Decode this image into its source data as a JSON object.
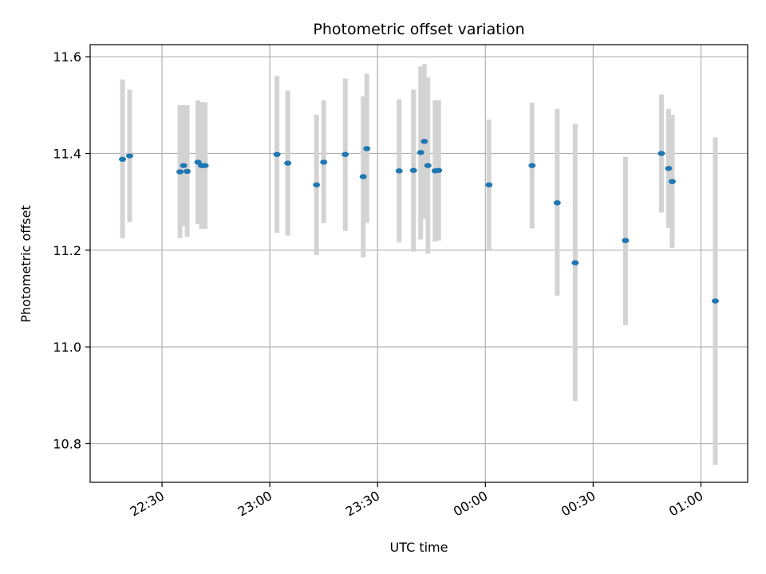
{
  "chart_data": {
    "type": "scatter",
    "title": "Photometric offset variation",
    "xlabel": "UTC time",
    "ylabel": "Photometric offset",
    "x_unit": "UTC time of day (HH:MM), crosses midnight",
    "x_range": [
      "22:10",
      "01:13"
    ],
    "ylim": [
      10.72,
      11.625
    ],
    "grid": true,
    "legend": "none",
    "x_ticks": [
      "22:30",
      "23:00",
      "23:30",
      "00:00",
      "00:30",
      "01:00"
    ],
    "y_ticks": [
      10.8,
      11.0,
      11.2,
      11.4,
      11.6
    ],
    "y_tick_labels": [
      "10.8",
      "11.0",
      "11.2",
      "11.4",
      "11.6"
    ],
    "colors": {
      "point": "#1f77b4",
      "errorbar": "#d3d3d3",
      "grid": "#b0b0b0"
    },
    "points": [
      {
        "t": "22:19",
        "y": 11.388,
        "lo": 11.225,
        "hi": 11.553
      },
      {
        "t": "22:21",
        "y": 11.395,
        "lo": 11.258,
        "hi": 11.532
      },
      {
        "t": "22:35",
        "y": 11.362,
        "lo": 11.225,
        "hi": 11.5
      },
      {
        "t": "22:36",
        "y": 11.375,
        "lo": 11.25,
        "hi": 11.5
      },
      {
        "t": "22:37",
        "y": 11.363,
        "lo": 11.228,
        "hi": 11.5
      },
      {
        "t": "22:40",
        "y": 11.382,
        "lo": 11.254,
        "hi": 11.51
      },
      {
        "t": "22:41",
        "y": 11.375,
        "lo": 11.244,
        "hi": 11.506
      },
      {
        "t": "22:42",
        "y": 11.375,
        "lo": 11.244,
        "hi": 11.506
      },
      {
        "t": "23:02",
        "y": 11.398,
        "lo": 11.236,
        "hi": 11.56
      },
      {
        "t": "23:05",
        "y": 11.38,
        "lo": 11.23,
        "hi": 11.53
      },
      {
        "t": "23:13",
        "y": 11.335,
        "lo": 11.19,
        "hi": 11.48
      },
      {
        "t": "23:15",
        "y": 11.382,
        "lo": 11.256,
        "hi": 11.51
      },
      {
        "t": "23:21",
        "y": 11.398,
        "lo": 11.24,
        "hi": 11.555
      },
      {
        "t": "23:26",
        "y": 11.352,
        "lo": 11.185,
        "hi": 11.518
      },
      {
        "t": "23:27",
        "y": 11.41,
        "lo": 11.256,
        "hi": 11.565
      },
      {
        "t": "23:36",
        "y": 11.364,
        "lo": 11.216,
        "hi": 11.512
      },
      {
        "t": "23:40",
        "y": 11.365,
        "lo": 11.197,
        "hi": 11.532
      },
      {
        "t": "23:42",
        "y": 11.402,
        "lo": 11.222,
        "hi": 11.58
      },
      {
        "t": "23:43",
        "y": 11.425,
        "lo": 11.265,
        "hi": 11.585
      },
      {
        "t": "23:44",
        "y": 11.375,
        "lo": 11.193,
        "hi": 11.557
      },
      {
        "t": "23:46",
        "y": 11.364,
        "lo": 11.218,
        "hi": 11.51
      },
      {
        "t": "23:47",
        "y": 11.365,
        "lo": 11.22,
        "hi": 11.51
      },
      {
        "t": "00:01",
        "y": 11.335,
        "lo": 11.2,
        "hi": 11.47
      },
      {
        "t": "00:13",
        "y": 11.375,
        "lo": 11.245,
        "hi": 11.505
      },
      {
        "t": "00:20",
        "y": 11.298,
        "lo": 11.106,
        "hi": 11.492
      },
      {
        "t": "00:25",
        "y": 11.174,
        "lo": 10.888,
        "hi": 11.461
      },
      {
        "t": "00:39",
        "y": 11.22,
        "lo": 11.045,
        "hi": 11.393
      },
      {
        "t": "00:49",
        "y": 11.4,
        "lo": 11.278,
        "hi": 11.522
      },
      {
        "t": "00:51",
        "y": 11.369,
        "lo": 11.246,
        "hi": 11.492
      },
      {
        "t": "00:52",
        "y": 11.342,
        "lo": 11.205,
        "hi": 11.48
      },
      {
        "t": "01:04",
        "y": 11.095,
        "lo": 10.756,
        "hi": 11.433
      }
    ]
  }
}
